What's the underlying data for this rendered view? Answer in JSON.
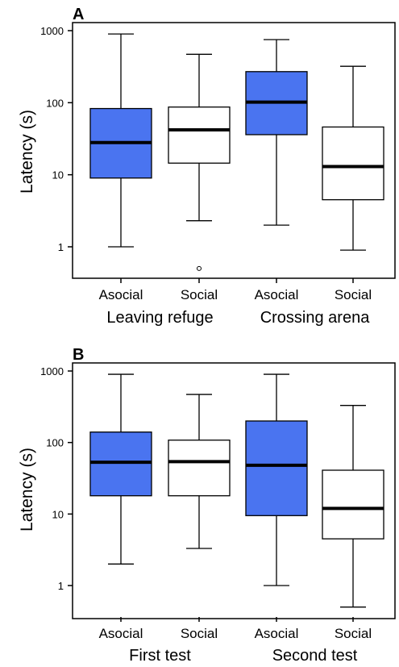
{
  "colors": {
    "asocial": "#4a74f0",
    "social": "#ffffff",
    "stroke": "#000000"
  },
  "chart_data": [
    {
      "type": "box",
      "panel": "A",
      "ylabel": "Latency (s)",
      "yscale": "log",
      "ylim": [
        0.4,
        1200
      ],
      "yticks": [
        1,
        10,
        100,
        1000
      ],
      "ytick_labels": [
        "1",
        "10",
        "100",
        "1000"
      ],
      "categories": [
        "Asocial",
        "Social",
        "Asocial",
        "Social"
      ],
      "groups": [
        "Leaving refuge",
        "Crossing arena"
      ],
      "boxes": [
        {
          "category": "Asocial",
          "group": "Leaving refuge",
          "whisker_low": 1.0,
          "q1": 9.0,
          "median": 28,
          "q3": 83,
          "whisker_high": 900,
          "outliers": []
        },
        {
          "category": "Social",
          "group": "Leaving refuge",
          "whisker_low": 2.3,
          "q1": 14.5,
          "median": 42,
          "q3": 87,
          "whisker_high": 470,
          "outliers": [
            0.5
          ]
        },
        {
          "category": "Asocial",
          "group": "Crossing arena",
          "whisker_low": 2.0,
          "q1": 36,
          "median": 102,
          "q3": 270,
          "whisker_high": 750,
          "outliers": []
        },
        {
          "category": "Social",
          "group": "Crossing arena",
          "whisker_low": 0.9,
          "q1": 4.5,
          "median": 13,
          "q3": 46,
          "whisker_high": 320,
          "outliers": []
        }
      ]
    },
    {
      "type": "box",
      "panel": "B",
      "ylabel": "Latency (s)",
      "yscale": "log",
      "ylim": [
        0.4,
        1200
      ],
      "yticks": [
        1,
        10,
        100,
        1000
      ],
      "ytick_labels": [
        "1",
        "10",
        "100",
        "1000"
      ],
      "categories": [
        "Asocial",
        "Social",
        "Asocial",
        "Social"
      ],
      "groups": [
        "First test",
        "Second test"
      ],
      "boxes": [
        {
          "category": "Asocial",
          "group": "First test",
          "whisker_low": 2.0,
          "q1": 18,
          "median": 53,
          "q3": 140,
          "whisker_high": 900,
          "outliers": []
        },
        {
          "category": "Social",
          "group": "First test",
          "whisker_low": 3.3,
          "q1": 18,
          "median": 54,
          "q3": 108,
          "whisker_high": 470,
          "outliers": []
        },
        {
          "category": "Asocial",
          "group": "Second test",
          "whisker_low": 1.0,
          "q1": 9.5,
          "median": 48,
          "q3": 200,
          "whisker_high": 900,
          "outliers": []
        },
        {
          "category": "Social",
          "group": "Second test",
          "whisker_low": 0.5,
          "q1": 4.5,
          "median": 12,
          "q3": 41,
          "whisker_high": 330,
          "outliers": []
        }
      ]
    }
  ]
}
